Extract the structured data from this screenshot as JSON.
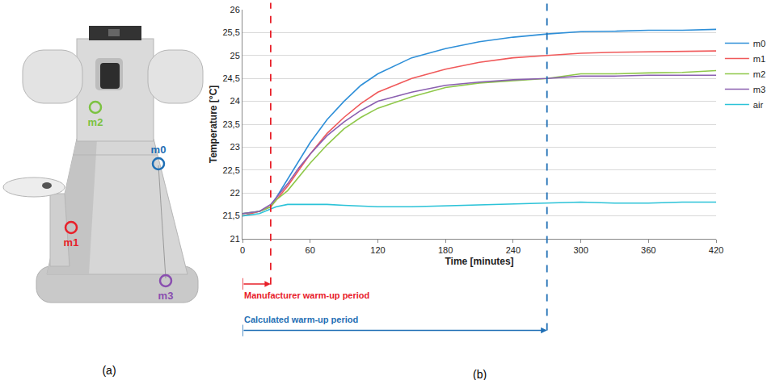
{
  "diagram": {
    "caption": "(a)",
    "points": [
      {
        "label": "m2",
        "color": "#7cc242"
      },
      {
        "label": "m0",
        "color": "#1f6fb5"
      },
      {
        "label": "m1",
        "color": "#e8202a"
      },
      {
        "label": "m3",
        "color": "#8a4fb0"
      }
    ]
  },
  "chart_data": {
    "type": "line",
    "caption": "(b)",
    "x_label": "Time [minutes]",
    "y_label": "Temperature [°C]",
    "x": [
      0,
      15,
      25,
      30,
      40,
      50,
      60,
      75,
      90,
      105,
      120,
      150,
      180,
      210,
      240,
      270,
      300,
      330,
      360,
      390,
      420
    ],
    "series": [
      {
        "name": "m0",
        "color": "#2e8fd8",
        "values": [
          21.55,
          21.6,
          21.7,
          21.9,
          22.3,
          22.7,
          23.1,
          23.6,
          24.0,
          24.35,
          24.6,
          24.95,
          25.15,
          25.3,
          25.4,
          25.47,
          25.52,
          25.53,
          25.55,
          25.55,
          25.57
        ]
      },
      {
        "name": "m1",
        "color": "#f0595a",
        "values": [
          21.5,
          21.6,
          21.7,
          21.85,
          22.15,
          22.5,
          22.85,
          23.3,
          23.65,
          23.95,
          24.2,
          24.5,
          24.7,
          24.85,
          24.95,
          25.0,
          25.05,
          25.07,
          25.08,
          25.1,
          25.1
        ]
      },
      {
        "name": "m2",
        "color": "#8fc84a",
        "values": [
          21.55,
          21.6,
          21.7,
          21.85,
          22.05,
          22.35,
          22.65,
          23.05,
          23.4,
          23.65,
          23.85,
          24.1,
          24.3,
          24.4,
          24.45,
          24.5,
          24.6,
          24.6,
          24.62,
          24.63,
          24.67
        ]
      },
      {
        "name": "m3",
        "color": "#8a5fb0",
        "values": [
          21.55,
          21.6,
          21.75,
          21.9,
          22.2,
          22.55,
          22.85,
          23.25,
          23.55,
          23.8,
          24.0,
          24.2,
          24.35,
          24.42,
          24.47,
          24.5,
          24.55,
          24.55,
          24.57,
          24.57,
          24.57
        ]
      },
      {
        "name": "air",
        "color": "#2cc3d8",
        "values": [
          21.5,
          21.55,
          21.65,
          21.7,
          21.75,
          21.75,
          21.75,
          21.75,
          21.73,
          21.72,
          21.7,
          21.7,
          21.72,
          21.73,
          21.75,
          21.77,
          21.8,
          21.78,
          21.78,
          21.8,
          21.8
        ]
      }
    ],
    "xlim": [
      0,
      420
    ],
    "xticks": [
      0,
      60,
      120,
      180,
      240,
      300,
      360,
      420
    ],
    "ylim": [
      21,
      26
    ],
    "yticks": [
      21,
      {
        "value": 21.5,
        "label": "21,5"
      },
      22,
      {
        "value": 22.5,
        "label": "22,5"
      },
      23,
      {
        "value": 23.5,
        "label": "23,5"
      },
      24,
      {
        "value": 24.5,
        "label": "24,5"
      },
      25,
      {
        "value": 25.5,
        "label": "25,5"
      },
      26
    ],
    "grid": true,
    "legend": "right",
    "annotations": [
      {
        "text": "Manufacturer warm-up period",
        "x": 25,
        "color": "#e8202a"
      },
      {
        "text": "Calculated warm-up period",
        "x": 270,
        "color": "#1f6fb5"
      }
    ]
  }
}
